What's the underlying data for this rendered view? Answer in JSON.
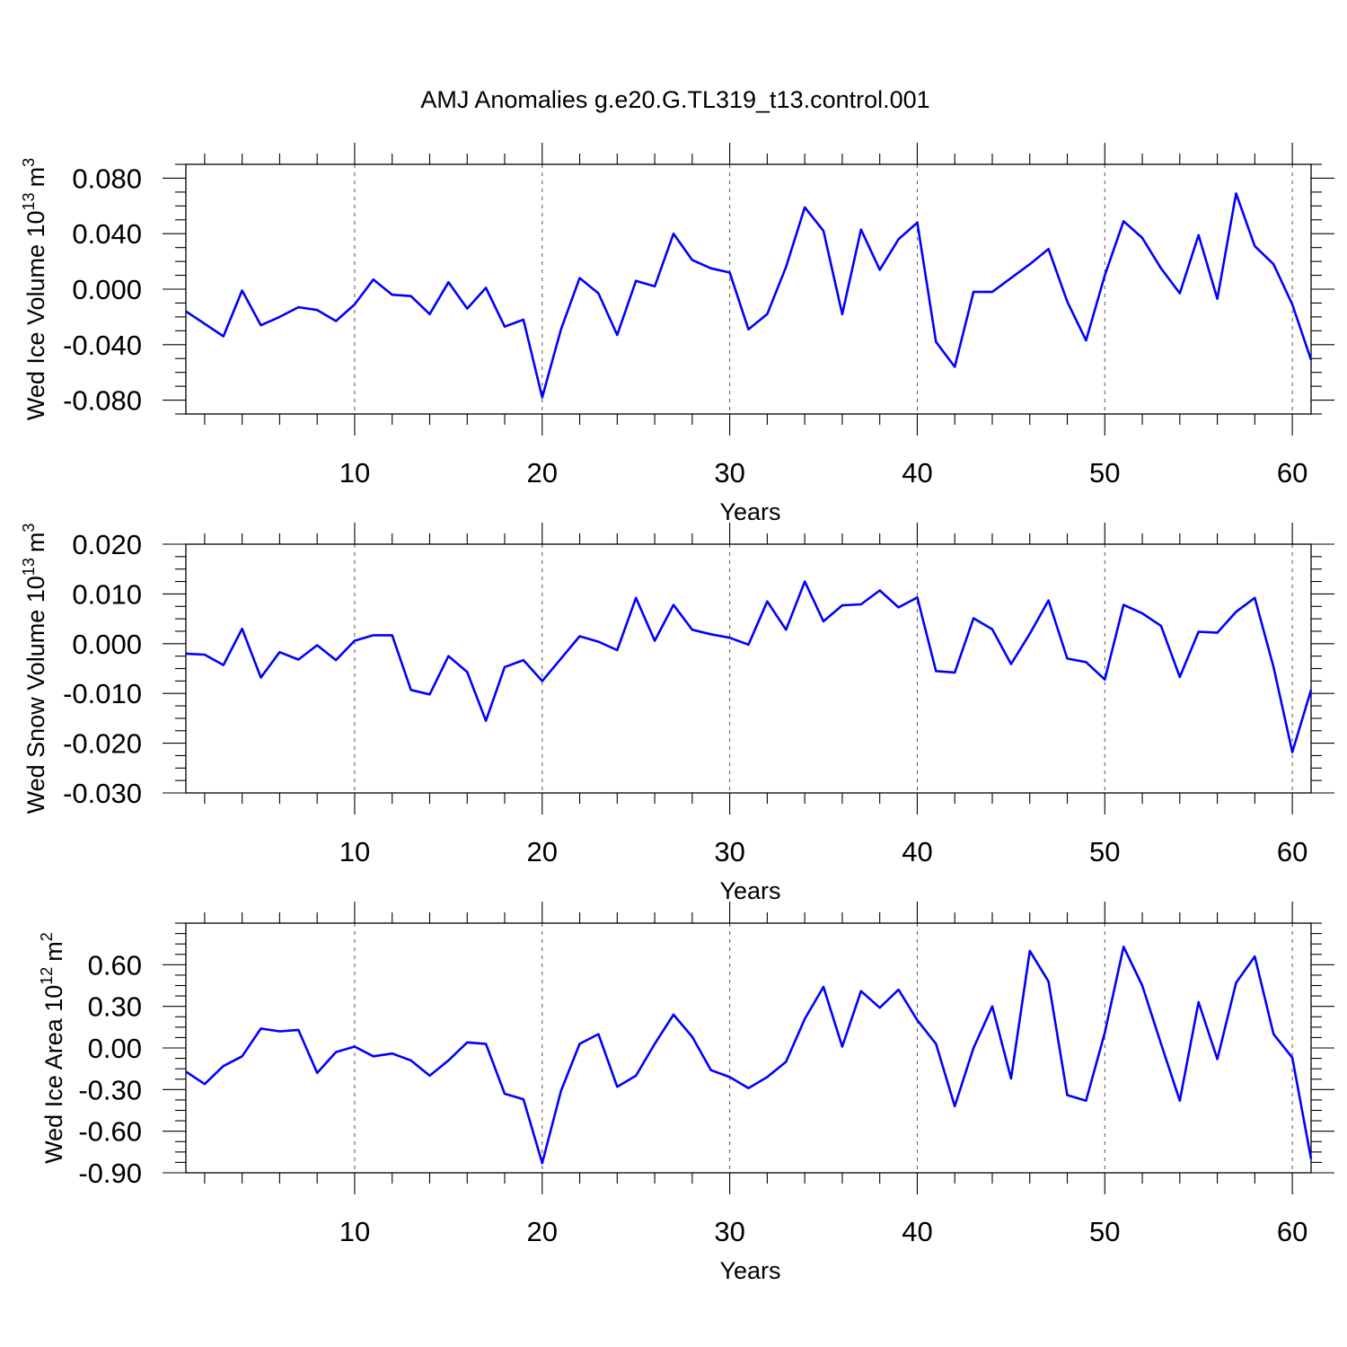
{
  "chart_data": [
    {
      "type": "line",
      "title": "AMJ Anomalies g.e20.G.TL319_t13.control.001",
      "xlabel": "Years",
      "ylabel": "Wed Ice Volume 10",
      "ylabel_sup": "13",
      "ylabel_unit": "m",
      "ylabel_unit_sup": "3",
      "xlim": [
        1,
        61
      ],
      "ylim": [
        -0.09,
        0.09
      ],
      "xticks": [
        10,
        20,
        30,
        40,
        50,
        60
      ],
      "yticks": [
        -0.08,
        -0.04,
        0.0,
        0.04,
        0.08
      ],
      "yticklabels": [
        "-0.080",
        "-0.040",
        "0.000",
        "0.040",
        "0.080"
      ],
      "grid": "vertical dashed at major x ticks",
      "color": "#0000ff",
      "x": [
        1,
        2,
        3,
        4,
        5,
        6,
        7,
        8,
        9,
        10,
        11,
        12,
        13,
        14,
        15,
        16,
        17,
        18,
        19,
        20,
        21,
        22,
        23,
        24,
        25,
        26,
        27,
        28,
        29,
        30,
        31,
        32,
        33,
        34,
        35,
        36,
        37,
        38,
        39,
        40,
        41,
        42,
        43,
        44,
        45,
        46,
        47,
        48,
        49,
        50,
        51,
        52,
        53,
        54,
        55,
        56,
        57,
        58,
        59,
        60,
        61
      ],
      "values": [
        -0.016,
        -0.025,
        -0.034,
        -0.001,
        -0.026,
        -0.02,
        -0.013,
        -0.015,
        -0.023,
        -0.011,
        0.007,
        -0.004,
        -0.005,
        -0.018,
        0.005,
        -0.014,
        0.001,
        -0.027,
        -0.022,
        -0.078,
        -0.029,
        0.008,
        -0.003,
        -0.033,
        0.006,
        0.002,
        0.04,
        0.021,
        0.015,
        0.012,
        -0.029,
        -0.018,
        0.016,
        0.059,
        0.042,
        -0.018,
        0.043,
        0.014,
        0.036,
        0.048,
        -0.038,
        -0.056,
        -0.002,
        -0.002,
        0.008,
        0.018,
        0.029,
        -0.009,
        -0.037,
        0.01,
        0.049,
        0.037,
        0.015,
        -0.003,
        0.039,
        -0.007,
        0.069,
        0.031,
        0.018,
        -0.011,
        -0.051
      ]
    },
    {
      "type": "line",
      "xlabel": "Years",
      "ylabel": "Wed Snow Volume 10",
      "ylabel_sup": "13",
      "ylabel_unit": "m",
      "ylabel_unit_sup": "3",
      "xlim": [
        1,
        61
      ],
      "ylim": [
        -0.03,
        0.02
      ],
      "xticks": [
        10,
        20,
        30,
        40,
        50,
        60
      ],
      "yticks": [
        -0.03,
        -0.02,
        -0.01,
        0.0,
        0.01,
        0.02
      ],
      "yticklabels": [
        "-0.030",
        "-0.020",
        "-0.010",
        "0.000",
        "0.010",
        "0.020"
      ],
      "grid": "vertical dashed at major x ticks",
      "color": "#0000ff",
      "x": [
        1,
        2,
        3,
        4,
        5,
        6,
        7,
        8,
        9,
        10,
        11,
        12,
        13,
        14,
        15,
        16,
        17,
        18,
        19,
        20,
        21,
        22,
        23,
        24,
        25,
        26,
        27,
        28,
        29,
        30,
        31,
        32,
        33,
        34,
        35,
        36,
        37,
        38,
        39,
        40,
        41,
        42,
        43,
        44,
        45,
        46,
        47,
        48,
        49,
        50,
        51,
        52,
        53,
        54,
        55,
        56,
        57,
        58,
        59,
        60,
        61
      ],
      "values": [
        -0.002,
        -0.0022,
        -0.0043,
        0.003,
        -0.0068,
        -0.0017,
        -0.0032,
        -0.0003,
        -0.0033,
        0.0006,
        0.0017,
        0.0017,
        -0.0093,
        -0.0102,
        -0.0025,
        -0.0057,
        -0.0155,
        -0.0047,
        -0.0033,
        -0.0075,
        -0.003,
        0.0015,
        0.0004,
        -0.0013,
        0.0092,
        0.0006,
        0.0078,
        0.0028,
        0.0019,
        0.0012,
        -0.0002,
        0.0085,
        0.0028,
        0.0125,
        0.0045,
        0.0077,
        0.0079,
        0.0107,
        0.0073,
        0.0093,
        -0.0055,
        -0.0058,
        0.0051,
        0.0029,
        -0.0041,
        0.002,
        0.0087,
        -0.003,
        -0.0037,
        -0.0072,
        0.0078,
        0.0061,
        0.0036,
        -0.0067,
        0.0024,
        0.0022,
        0.0064,
        0.0092,
        -0.0047,
        -0.0218,
        -0.0093
      ]
    },
    {
      "type": "line",
      "xlabel": "Years",
      "ylabel": "Wed Ice Area 10",
      "ylabel_sup": "12",
      "ylabel_unit": "m",
      "ylabel_unit_sup": "2",
      "xlim": [
        1,
        61
      ],
      "ylim": [
        -0.9,
        0.9
      ],
      "xticks": [
        10,
        20,
        30,
        40,
        50,
        60
      ],
      "yticks": [
        -0.9,
        -0.6,
        -0.3,
        0.0,
        0.3,
        0.6
      ],
      "yticklabels": [
        "-0.90",
        "-0.60",
        "-0.30",
        "0.00",
        "0.30",
        "0.60"
      ],
      "grid": "vertical dashed at major x ticks",
      "color": "#0000ff",
      "x": [
        1,
        2,
        3,
        4,
        5,
        6,
        7,
        8,
        9,
        10,
        11,
        12,
        13,
        14,
        15,
        16,
        17,
        18,
        19,
        20,
        21,
        22,
        23,
        24,
        25,
        26,
        27,
        28,
        29,
        30,
        31,
        32,
        33,
        34,
        35,
        36,
        37,
        38,
        39,
        40,
        41,
        42,
        43,
        44,
        45,
        46,
        47,
        48,
        49,
        50,
        51,
        52,
        53,
        54,
        55,
        56,
        57,
        58,
        59,
        60,
        61
      ],
      "values": [
        -0.17,
        -0.26,
        -0.13,
        -0.06,
        0.14,
        0.12,
        0.13,
        -0.18,
        -0.03,
        0.01,
        -0.06,
        -0.04,
        -0.09,
        -0.2,
        -0.09,
        0.04,
        0.03,
        -0.33,
        -0.37,
        -0.83,
        -0.31,
        0.03,
        0.1,
        -0.28,
        -0.2,
        0.03,
        0.24,
        0.08,
        -0.16,
        -0.21,
        -0.29,
        -0.21,
        -0.1,
        0.21,
        0.44,
        0.01,
        0.41,
        0.29,
        0.42,
        0.2,
        0.03,
        -0.42,
        0.0,
        0.3,
        -0.22,
        0.7,
        0.48,
        -0.34,
        -0.38,
        0.11,
        0.73,
        0.45,
        0.03,
        -0.38,
        0.33,
        -0.08,
        0.47,
        0.66,
        0.1,
        -0.07,
        -0.8
      ]
    }
  ]
}
